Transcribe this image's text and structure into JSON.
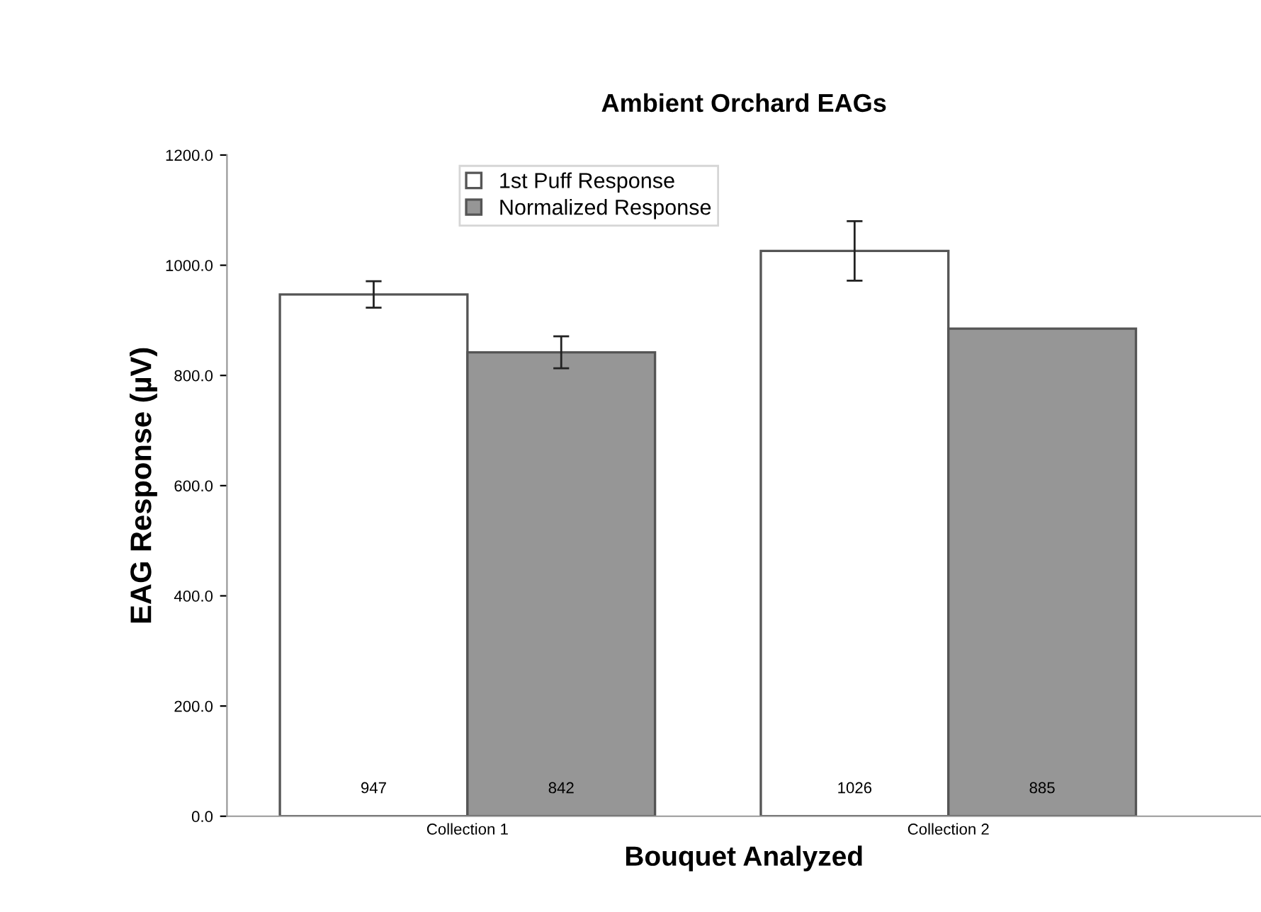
{
  "chart_data": {
    "type": "bar",
    "title": "Ambient Orchard EAGs",
    "xlabel": "Bouquet Analyzed",
    "ylabel": "EAG Response (µV)",
    "categories": [
      "Collection 1",
      "Collection 2"
    ],
    "series": [
      {
        "name": "1st Puff Response",
        "color": "#ffffff",
        "values": [
          947,
          1026
        ],
        "errors": [
          24,
          54
        ]
      },
      {
        "name": "Normalized Response",
        "color": "#969696",
        "values": [
          842,
          885
        ],
        "errors": [
          29,
          null
        ]
      }
    ],
    "ylim": [
      0,
      1200
    ],
    "yticks": [
      {
        "value": 0,
        "label": "0.0"
      },
      {
        "value": 200,
        "label": "200.0"
      },
      {
        "value": 400,
        "label": "400.0"
      },
      {
        "value": 600,
        "label": "600.0"
      },
      {
        "value": 800,
        "label": "800.0"
      },
      {
        "value": 1000,
        "label": "1000.0"
      },
      {
        "value": 1200,
        "label": "1200.0"
      }
    ],
    "data_labels": true,
    "legend": "top",
    "grid": false
  }
}
